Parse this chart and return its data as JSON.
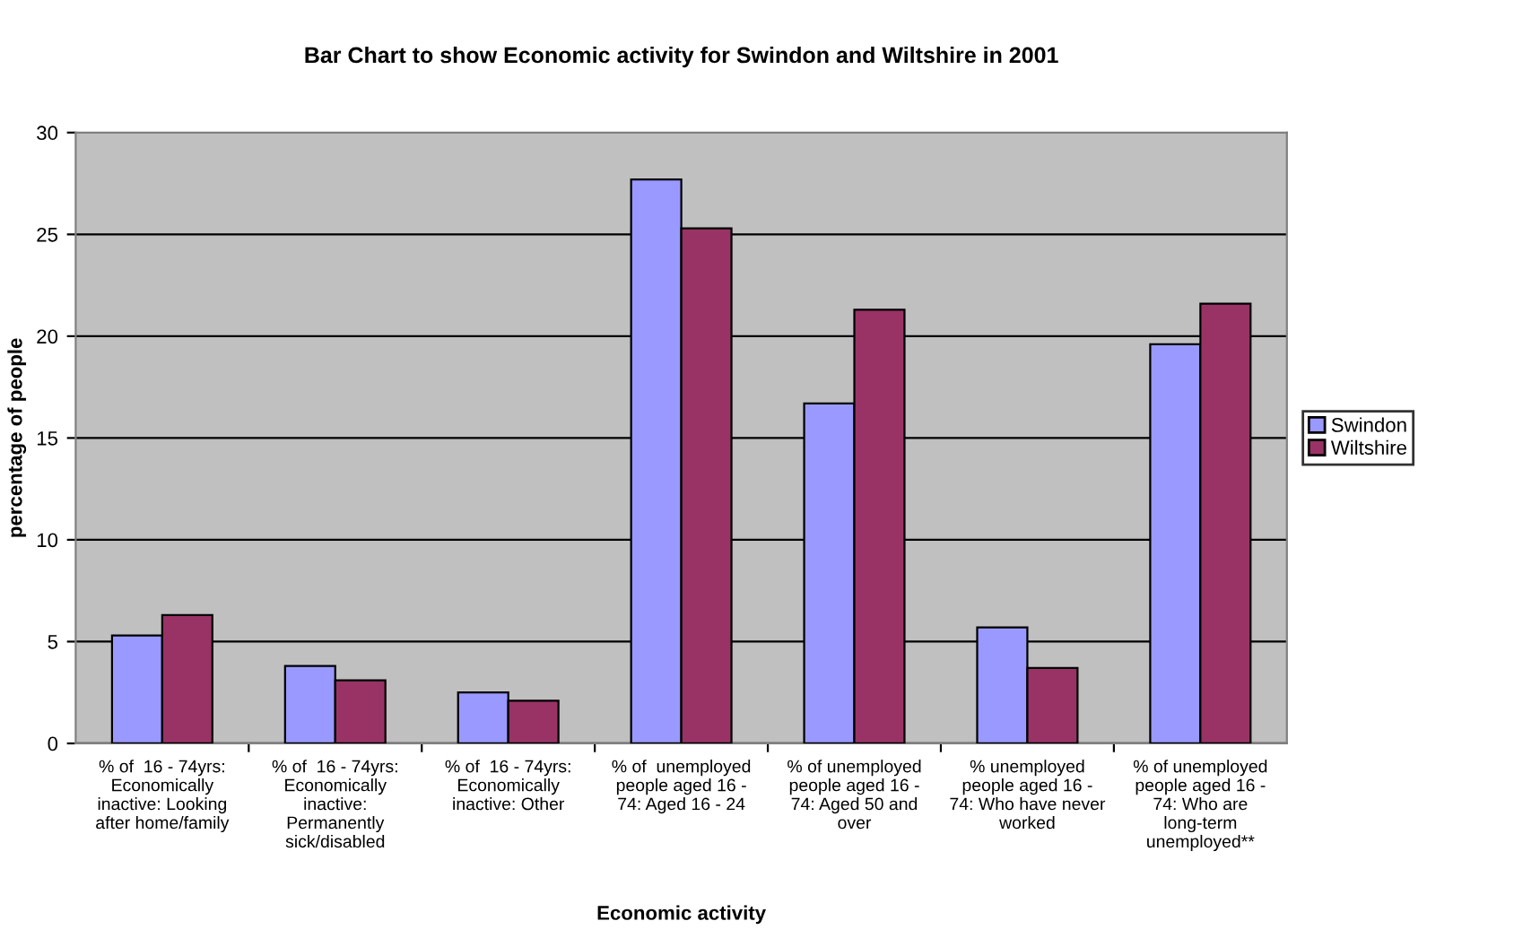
{
  "chart_data": {
    "type": "bar",
    "title": "Bar Chart to show Economic activity for Swindon and Wiltshire in 2001",
    "xlabel": "Economic activity",
    "ylabel": "percentage of people",
    "categories": [
      "% of  16 - 74yrs: Economically inactive: Looking after home/family",
      "% of  16 - 74yrs: Economically inactive: Permanently sick/disabled",
      "% of  16 - 74yrs: Economically inactive: Other",
      "% of  unemployed people aged 16 - 74: Aged 16 - 24",
      "% of unemployed people aged 16 - 74: Aged 50 and over",
      "% unemployed people aged 16 - 74: Who have never worked",
      "% of unemployed people aged 16 - 74: Who are long-term unemployed**"
    ],
    "series": [
      {
        "name": "Swindon",
        "color": "#9999ff",
        "values": [
          5.3,
          3.8,
          2.5,
          27.7,
          16.7,
          5.7,
          19.6
        ]
      },
      {
        "name": "Wiltshire",
        "color": "#993366",
        "values": [
          6.3,
          3.1,
          2.1,
          25.3,
          21.3,
          3.7,
          21.6
        ]
      }
    ],
    "ylim": [
      0,
      30
    ],
    "yticks": [
      0,
      5,
      10,
      15,
      20,
      25,
      30
    ],
    "grid": "y",
    "legend": "right"
  }
}
